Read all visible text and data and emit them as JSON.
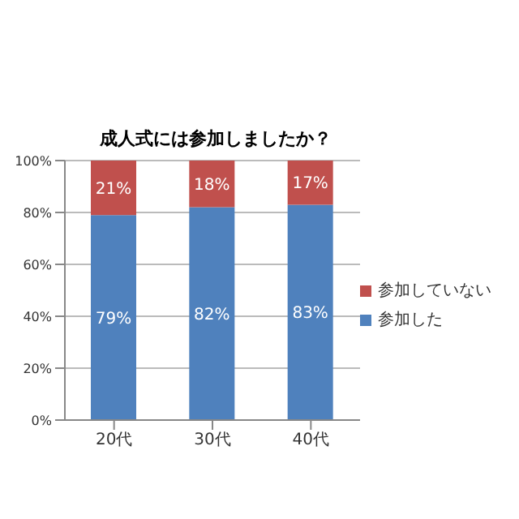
{
  "chart_data": {
    "type": "bar",
    "title": "成人式には参加しましたか？",
    "categories": [
      "20代",
      "30代",
      "40代"
    ],
    "stacked": true,
    "series": [
      {
        "name": "参加した",
        "color": "#4f81bd",
        "values": [
          79,
          82,
          83
        ],
        "value_labels": [
          "79%",
          "82%",
          "83%"
        ]
      },
      {
        "name": "参加していない",
        "color": "#c0504d",
        "values": [
          21,
          18,
          17
        ],
        "value_labels": [
          "21%",
          "18%",
          "17%"
        ]
      }
    ],
    "ylim": [
      0,
      100
    ],
    "yticks": [
      {
        "value": 0,
        "label": "0%"
      },
      {
        "value": 20,
        "label": "20%"
      },
      {
        "value": 40,
        "label": "40%"
      },
      {
        "value": 60,
        "label": "60%"
      },
      {
        "value": 80,
        "label": "80%"
      },
      {
        "value": 100,
        "label": "100%"
      }
    ],
    "grid": "y",
    "legend": "right"
  }
}
